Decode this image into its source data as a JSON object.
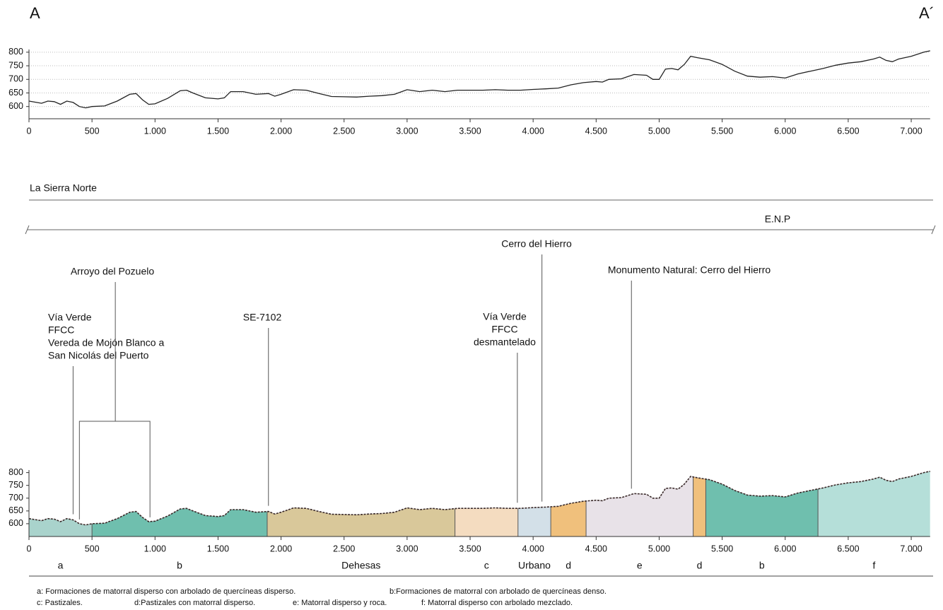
{
  "chart_data": [
    {
      "type": "line",
      "start_label": "A",
      "end_label": "A´",
      "x": [
        0,
        100,
        150,
        200,
        250,
        300,
        350,
        400,
        450,
        500,
        600,
        700,
        800,
        850,
        900,
        950,
        1000,
        1100,
        1200,
        1250,
        1300,
        1400,
        1500,
        1550,
        1600,
        1700,
        1800,
        1900,
        1950,
        2000,
        2100,
        2200,
        2300,
        2400,
        2500,
        2600,
        2700,
        2800,
        2900,
        3000,
        3100,
        3200,
        3300,
        3400,
        3500,
        3600,
        3700,
        3800,
        3900,
        4000,
        4100,
        4200,
        4300,
        4400,
        4500,
        4550,
        4600,
        4700,
        4800,
        4900,
        4950,
        5000,
        5050,
        5100,
        5150,
        5200,
        5250,
        5300,
        5400,
        5500,
        5600,
        5700,
        5800,
        5900,
        6000,
        6100,
        6200,
        6300,
        6400,
        6500,
        6600,
        6700,
        6750,
        6800,
        6850,
        6900,
        7000,
        7100,
        7150
      ],
      "values": [
        620,
        612,
        620,
        618,
        608,
        620,
        615,
        600,
        595,
        600,
        602,
        620,
        645,
        648,
        625,
        608,
        610,
        630,
        658,
        660,
        650,
        632,
        628,
        632,
        655,
        655,
        645,
        648,
        638,
        645,
        662,
        660,
        648,
        637,
        636,
        635,
        638,
        640,
        645,
        662,
        655,
        660,
        655,
        660,
        660,
        660,
        662,
        660,
        660,
        663,
        665,
        668,
        680,
        688,
        692,
        690,
        700,
        702,
        718,
        715,
        700,
        700,
        738,
        740,
        735,
        755,
        785,
        780,
        772,
        755,
        730,
        712,
        708,
        710,
        705,
        720,
        730,
        740,
        752,
        760,
        765,
        775,
        782,
        770,
        765,
        775,
        785,
        800,
        805
      ],
      "color": "#222222",
      "xlim": [
        0,
        7150
      ],
      "ylim": [
        555,
        810
      ],
      "xticks": [
        0,
        500,
        {
          "value": 1000,
          "label": "1.000"
        },
        {
          "value": 1500,
          "label": "1.500"
        },
        {
          "value": 2000,
          "label": "2.000"
        },
        {
          "value": 2500,
          "label": "2.500"
        },
        {
          "value": 3000,
          "label": "3.000"
        },
        {
          "value": 3500,
          "label": "3.500"
        },
        {
          "value": 4000,
          "label": "4.000"
        },
        {
          "value": 4500,
          "label": "4.500"
        },
        {
          "value": 5000,
          "label": "5.000"
        },
        {
          "value": 5500,
          "label": "5.500"
        },
        {
          "value": 6000,
          "label": "6.000"
        },
        {
          "value": 6500,
          "label": "6.500"
        },
        {
          "value": 7000,
          "label": "7.000"
        }
      ],
      "yticks": [
        600,
        650,
        700,
        750,
        800
      ],
      "grid": true
    },
    {
      "type": "profile",
      "bands": [
        {
          "label": "La Sierra Norte"
        },
        {
          "label": "E.N.P"
        }
      ],
      "annotations": [
        {
          "lines": [
            "Vía Verde",
            "FFCC",
            "Vereda de Mojón Blanco a",
            "San Nicolás del Puerto"
          ],
          "x": 350
        },
        {
          "lines": [
            "Arroyo  del Pozuelo"
          ],
          "x": 685,
          "span": [
            400,
            960
          ]
        },
        {
          "lines": [
            "SE-7102"
          ],
          "x": 1900
        },
        {
          "lines": [
            "Vía Verde",
            "FFCC",
            "desmantelado"
          ],
          "x": 3875
        },
        {
          "lines": [
            "Cerro del Hierro"
          ],
          "x": 4070
        },
        {
          "lines": [
            "Monumento Natural: Cerro del Hierro"
          ],
          "x": 4780
        }
      ],
      "zones": [
        {
          "label": "a",
          "start": 0,
          "end": 500,
          "color": "#a9d3cc"
        },
        {
          "label": "b",
          "start": 500,
          "end": 1890,
          "color": "#6fbfae"
        },
        {
          "label": "Dehesas",
          "start": 1890,
          "end": 3380,
          "color": "#d9c89a"
        },
        {
          "label": "c",
          "start": 3380,
          "end": 3880,
          "color": "#f4dcc0"
        },
        {
          "label": "Urbano",
          "start": 3880,
          "end": 4140,
          "color": "#d3e0e8"
        },
        {
          "label": "d",
          "start": 4140,
          "end": 4420,
          "color": "#f0c07c"
        },
        {
          "label": "e",
          "start": 4420,
          "end": 5270,
          "color": "#e8e2e8"
        },
        {
          "label": "d",
          "start": 5270,
          "end": 5370,
          "color": "#f0c07c"
        },
        {
          "label": "b",
          "start": 5370,
          "end": 6260,
          "color": "#6fbfae"
        },
        {
          "label": "f",
          "start": 6260,
          "end": 7150,
          "color": "#b5dfd9"
        }
      ],
      "xlim": [
        0,
        7150
      ],
      "ylim": [
        550,
        810
      ],
      "xticks": [
        0,
        500,
        {
          "value": 1000,
          "label": "1.000"
        },
        {
          "value": 1500,
          "label": "1.500"
        },
        {
          "value": 2000,
          "label": "2.000"
        },
        {
          "value": 2500,
          "label": "2.500"
        },
        {
          "value": 3000,
          "label": "3.000"
        },
        {
          "value": 3500,
          "label": "3.500"
        },
        {
          "value": 4000,
          "label": "4.000"
        },
        {
          "value": 4500,
          "label": "4.500"
        },
        {
          "value": 5000,
          "label": "5.000"
        },
        {
          "value": 5500,
          "label": "5.500"
        },
        {
          "value": 6000,
          "label": "6.000"
        },
        {
          "value": 6500,
          "label": "6.500"
        },
        {
          "value": 7000,
          "label": "7.000"
        }
      ],
      "yticks": [
        600,
        650,
        700,
        750,
        800
      ],
      "legend": [
        [
          "a: Formaciones de matorral disperso con arbolado de quercíneas disperso.",
          "b:Formaciones de matorral  con arbolado de quercíneas denso."
        ],
        [
          "c: Pastizales.",
          "d:Pastizales con matorral disperso.",
          "e: Matorral disperso y roca.",
          "f: Matorral disperso con arbolado mezclado."
        ]
      ]
    }
  ]
}
